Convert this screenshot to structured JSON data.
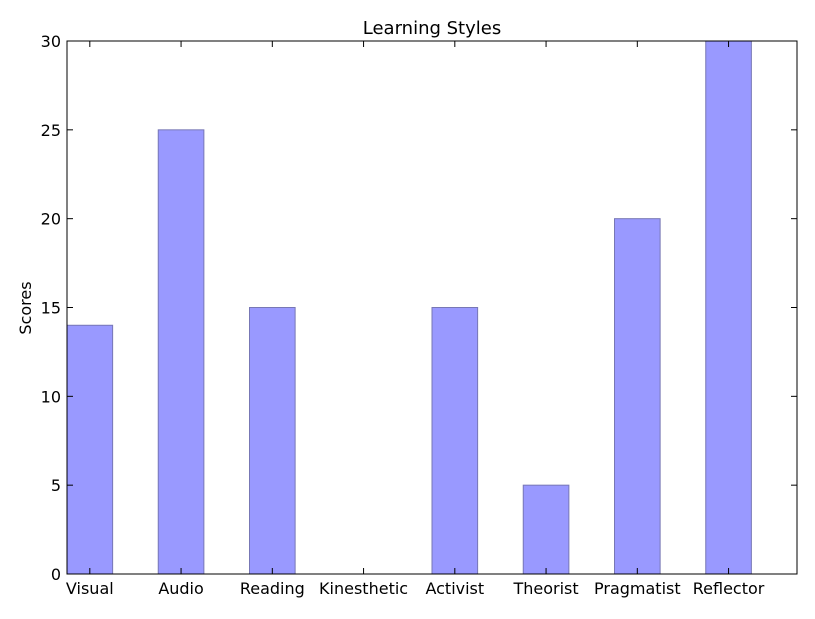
{
  "chart_data": {
    "type": "bar",
    "title": "Learning Styles",
    "xlabel": "",
    "ylabel": "Scores",
    "categories": [
      "Visual",
      "Audio",
      "Reading",
      "Kinesthetic",
      "Activist",
      "Theorist",
      "Pragmatist",
      "Reflector"
    ],
    "values": [
      14,
      25,
      15,
      0,
      15,
      5,
      20,
      30
    ],
    "ylim": [
      0,
      30
    ],
    "yticks": [
      0,
      5,
      10,
      15,
      20,
      25,
      30
    ],
    "grid": false,
    "colors": {
      "bar_fill": "#9999ff",
      "bar_edge": "#7777b5",
      "axis": "#000000"
    }
  }
}
